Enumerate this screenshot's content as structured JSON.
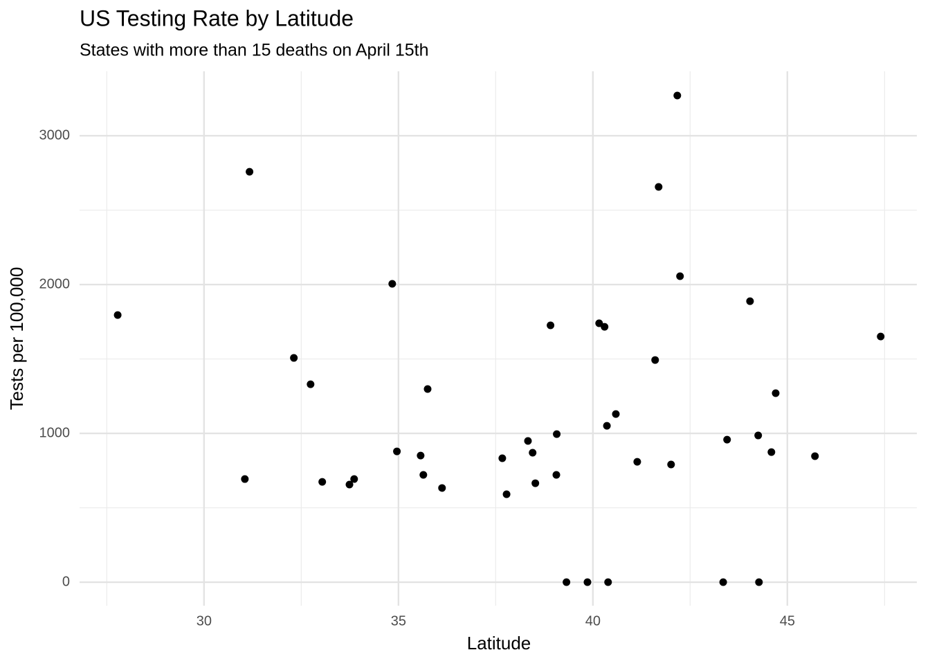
{
  "chart_data": {
    "type": "scatter",
    "title": "US Testing Rate by Latitude",
    "subtitle": "States with more than 15 deaths on April 15th",
    "x_label": "Latitude",
    "y_label": "Tests per 100,000",
    "xlim": [
      26.8,
      48.33
    ],
    "ylim": [
      -158,
      3433
    ],
    "xticks": [
      30,
      35,
      40,
      45
    ],
    "yticks": [
      0,
      1000,
      2000,
      3000
    ],
    "xminor": [
      27.5,
      32.5,
      37.5,
      42.5,
      47.5
    ],
    "yminor": [
      500,
      1500,
      2500
    ],
    "grid": true,
    "color": "#000000",
    "x": [
      27.78,
      31.17,
      31.05,
      32.31,
      32.74,
      33.04,
      33.74,
      33.86,
      34.84,
      34.96,
      35.57,
      35.64,
      35.75,
      36.12,
      37.67,
      37.78,
      38.33,
      38.45,
      38.52,
      38.91,
      39.06,
      39.07,
      39.32,
      39.86,
      40.16,
      40.3,
      40.36,
      40.39,
      40.59,
      41.14,
      41.6,
      41.69,
      42.01,
      42.17,
      42.24,
      43.35,
      43.45,
      44.04,
      44.25,
      44.27,
      44.59,
      44.7,
      45.71,
      47.4
    ],
    "values": [
      1795,
      2758,
      693,
      1507,
      1330,
      674,
      656,
      693,
      2005,
      879,
      851,
      721,
      1298,
      633,
      833,
      591,
      949,
      870,
      665,
      1726,
      721,
      995,
      0,
      0,
      1740,
      1716,
      1051,
      0,
      1130,
      809,
      1493,
      2656,
      791,
      3270,
      2056,
      0,
      958,
      1888,
      986,
      0,
      874,
      1270,
      847,
      1651
    ]
  }
}
